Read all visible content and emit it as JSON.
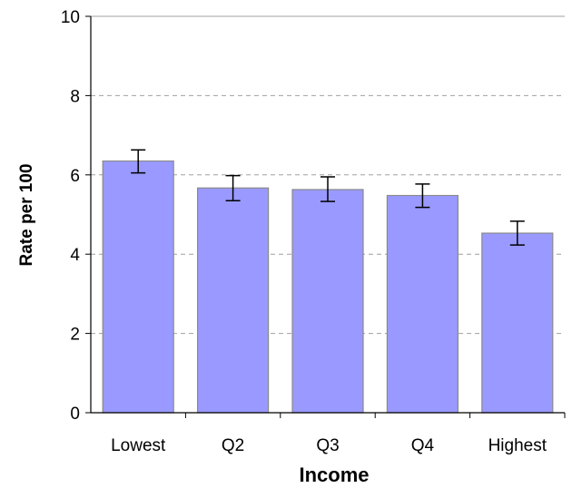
{
  "chart_data": {
    "type": "bar",
    "categories": [
      "Lowest",
      "Q2",
      "Q3",
      "Q4",
      "Highest"
    ],
    "values": [
      6.35,
      5.67,
      5.63,
      5.48,
      4.53
    ],
    "error_bars": {
      "low": [
        6.05,
        5.35,
        5.33,
        5.18,
        4.23
      ],
      "high": [
        6.63,
        5.98,
        5.95,
        5.77,
        4.83
      ]
    },
    "title": "",
    "xlabel": "Income",
    "ylabel": "Rate per 100",
    "ylim": [
      0,
      10
    ],
    "yticks": [
      0,
      2,
      4,
      6,
      8,
      10
    ],
    "grid": "horizontal dashed",
    "legend": "none",
    "colors": {
      "bar_fill": "#9999ff",
      "bar_stroke": "#8a8a8a",
      "axis": "#000000",
      "grid": "#a0a0a0",
      "error_bar": "#000000"
    }
  }
}
